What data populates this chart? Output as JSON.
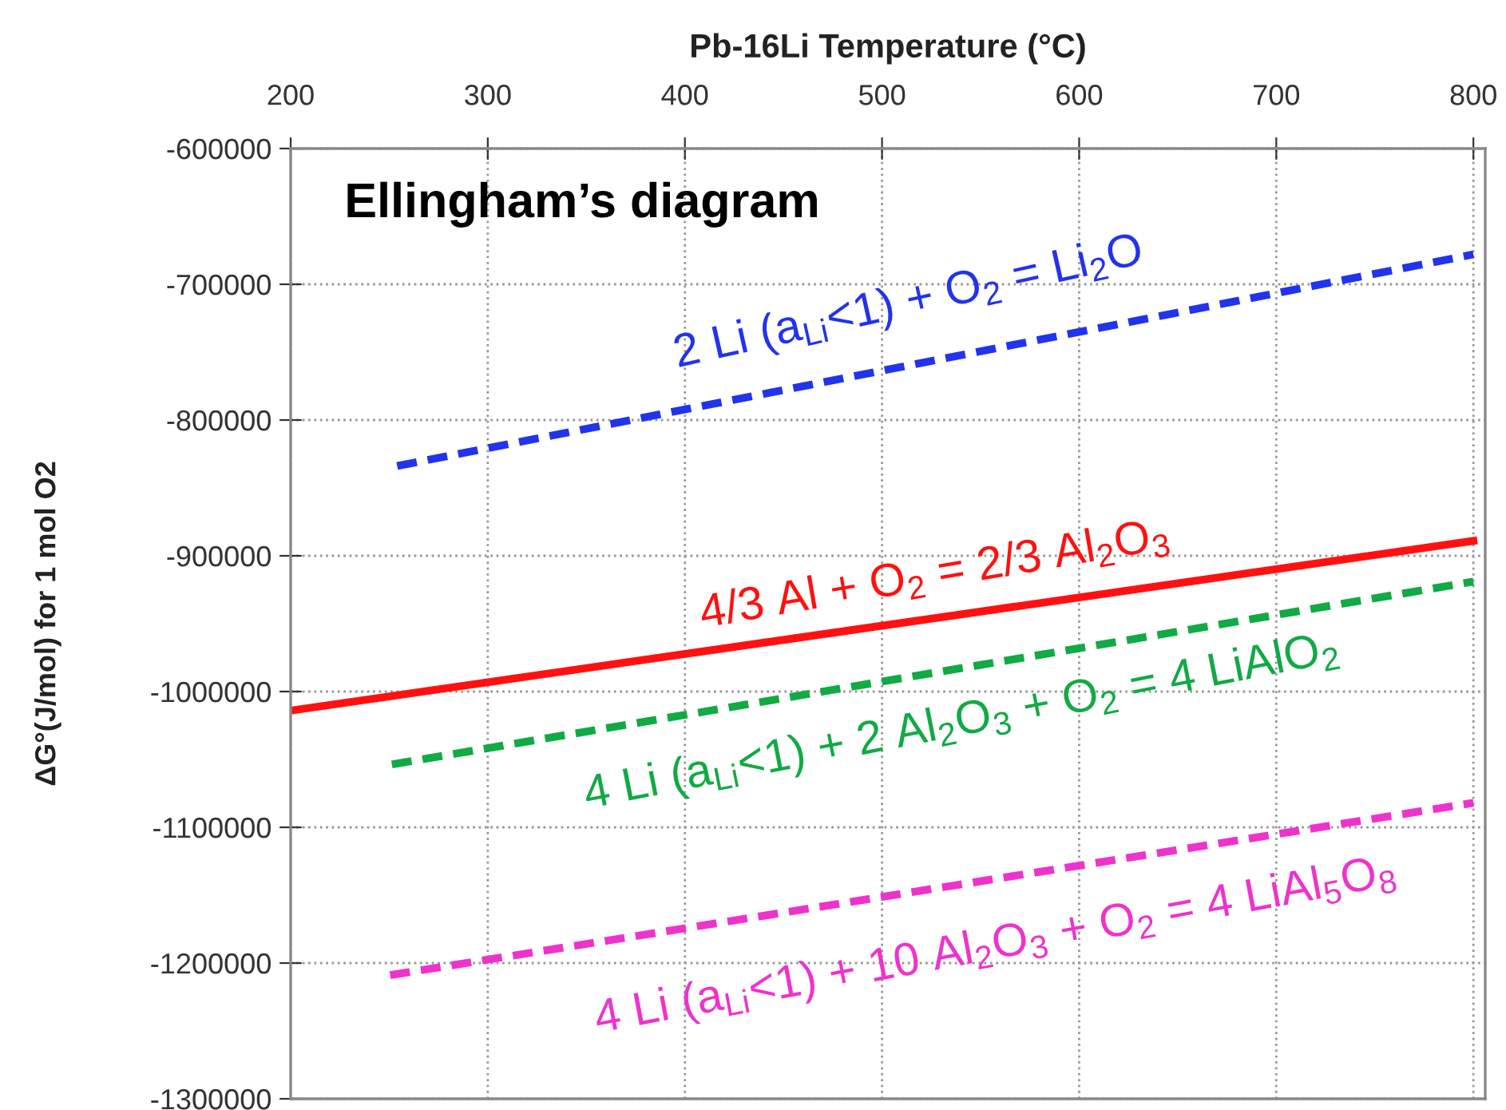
{
  "chart_data": {
    "type": "line",
    "title": "Ellingham’s diagram",
    "xlabel": "Pb-16Li Temperature (°C)",
    "ylabel": "ΔG°(J/mol) for 1 mol O2",
    "xlim": [
      200,
      806
    ],
    "xticks": [
      200,
      300,
      400,
      500,
      600,
      700,
      800
    ],
    "ylim": [
      -1300000,
      -600000
    ],
    "yticks": [
      -1300000,
      -1200000,
      -1100000,
      -1000000,
      -900000,
      -800000,
      -700000,
      -600000
    ],
    "series": [
      {
        "name": "2 Li (a$_{Li}$<1) + O$_{2}$ = Li$_{2}$O",
        "color": "#2233ee",
        "line_style": "dashed",
        "x": [
          250,
          800
        ],
        "values": [
          -835000,
          -678000
        ]
      },
      {
        "name": "4/3 Al + O$_{2}$ = 2/3 Al$_{2}$O$_{3}$",
        "color": "#ff1111",
        "line_style": "solid",
        "x": [
          200,
          800
        ],
        "values": [
          -1014000,
          -889000
        ]
      },
      {
        "name": "4 Li (a$_{Li}$<1) + 2 Al$_{2}$O$_{3}$ + O$_{2}$ = 4 LiAlO$_{2}$",
        "color": "#11aa44",
        "line_style": "dashed",
        "x": [
          250,
          800
        ],
        "values": [
          -1054000,
          -919000
        ]
      },
      {
        "name": "4 Li (a$_{Li}$<1) + 10 Al$_{2}$O$_{3}$ + O$_{2}$ = 4 LiAl$_{5}$O$_{8}$",
        "color": "#ee33cc",
        "line_style": "dashed",
        "x": [
          250,
          800
        ],
        "values": [
          -1209000,
          -1082000
        ]
      }
    ],
    "grid": true,
    "marker": "none"
  }
}
